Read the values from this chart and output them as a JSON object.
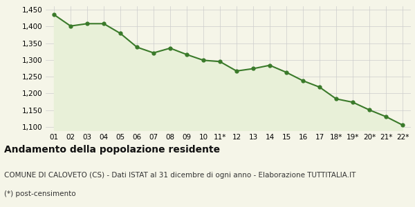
{
  "x_labels": [
    "01",
    "02",
    "03",
    "04",
    "05",
    "06",
    "07",
    "08",
    "09",
    "10",
    "11*",
    "12",
    "13",
    "14",
    "15",
    "16",
    "17",
    "18*",
    "19*",
    "20*",
    "21*",
    "22*"
  ],
  "y_values": [
    1435,
    1401,
    1408,
    1408,
    1379,
    1338,
    1321,
    1335,
    1316,
    1299,
    1295,
    1267,
    1274,
    1284,
    1263,
    1238,
    1219,
    1184,
    1174,
    1151,
    1131,
    1106
  ],
  "line_color": "#3a7a2a",
  "fill_color": "#e8f0d8",
  "marker_color": "#3a7a2a",
  "background_color": "#f5f5e8",
  "grid_color": "#cccccc",
  "ylim": [
    1090,
    1460
  ],
  "yticks": [
    1100,
    1150,
    1200,
    1250,
    1300,
    1350,
    1400,
    1450
  ],
  "title_bold": "Andamento della popolazione residente",
  "subtitle": "COMUNE DI CALOVETO (CS) - Dati ISTAT al 31 dicembre di ogni anno - Elaborazione TUTTITALIA.IT",
  "footnote": "(*) post-censimento",
  "title_fontsize": 10,
  "subtitle_fontsize": 7.5,
  "footnote_fontsize": 7.5,
  "tick_fontsize": 7.5
}
